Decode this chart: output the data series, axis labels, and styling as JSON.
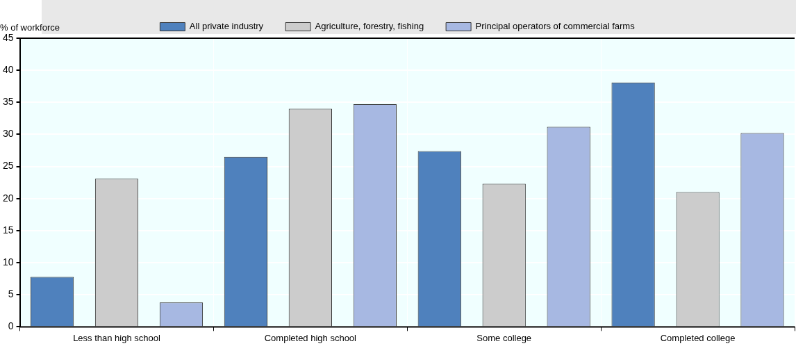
{
  "chart_data": {
    "type": "bar",
    "ylabel": "% of workforce",
    "categories": [
      "Less than high school",
      "Completed high school",
      "Some college",
      "Completed college"
    ],
    "series": [
      {
        "name": "All private industry",
        "color": "#4f81bd",
        "values": [
          7.8,
          26.5,
          27.4,
          38.1
        ]
      },
      {
        "name": "Agriculture, forestry, fishing",
        "color": "#cccccc",
        "values": [
          23.1,
          34.0,
          22.3,
          21.0
        ]
      },
      {
        "name": "Principal operators of commercial farms",
        "color": "#a7b8e2",
        "values": [
          3.8,
          34.7,
          31.2,
          30.2
        ]
      }
    ],
    "ylim": [
      0,
      45
    ],
    "yticks": [
      0,
      5,
      10,
      15,
      20,
      25,
      30,
      35,
      40,
      45
    ],
    "grid": true,
    "legend": "top"
  }
}
